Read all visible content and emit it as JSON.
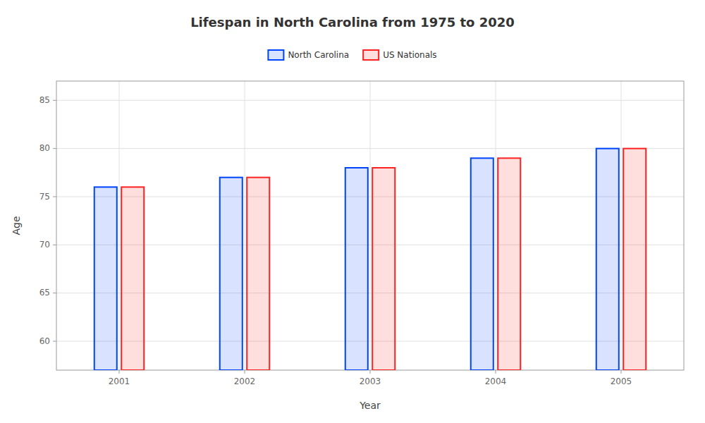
{
  "chart_data": {
    "type": "bar",
    "title": "Lifespan in North Carolina from 1975 to 2020",
    "x_label": "Year",
    "y_label": "Age",
    "categories": [
      "2001",
      "2002",
      "2003",
      "2004",
      "2005"
    ],
    "series": [
      {
        "name": "North Carolina",
        "color": "#0044ff",
        "values": [
          76,
          77,
          78,
          79,
          80
        ]
      },
      {
        "name": "US Nationals",
        "color": "#ff2222",
        "values": [
          76,
          77,
          78,
          79,
          80
        ]
      }
    ],
    "ylim": [
      57,
      87
    ],
    "yticks": [
      60,
      65,
      70,
      75,
      80,
      85
    ],
    "grid": true,
    "legend": "top"
  }
}
